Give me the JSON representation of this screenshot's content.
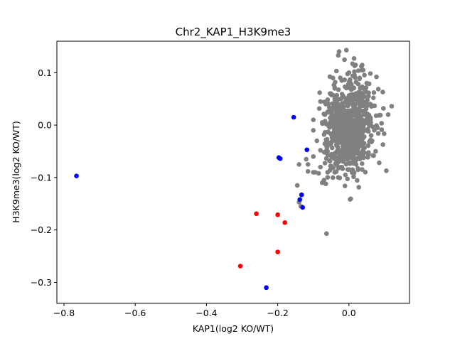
{
  "chart_data": {
    "type": "scatter",
    "title": "Chr2_KAP1_H3K9me3",
    "xlabel": "KAP1(log2 KO/WT)",
    "ylabel": "H3K9me3(log2 KO/WT)",
    "xlim": [
      -0.82,
      0.17
    ],
    "ylim": [
      -0.34,
      0.16
    ],
    "xticks": [
      -0.8,
      -0.6,
      -0.4,
      -0.2,
      0.0
    ],
    "xtick_labels": [
      "−0.8",
      "−0.6",
      "−0.4",
      "−0.2",
      "0.0"
    ],
    "yticks": [
      -0.3,
      -0.2,
      -0.1,
      0.0,
      0.1
    ],
    "ytick_labels": [
      "−0.3",
      "−0.2",
      "−0.1",
      "0.0",
      "0.1"
    ],
    "grid": false,
    "legend": "none",
    "series": [
      {
        "color": "#808080",
        "note_cluster": {
          "center": [
            0.0,
            0.0
          ],
          "spread": [
            0.032,
            0.045
          ],
          "count": 700,
          "seed": 7
        },
        "points": [
          [
            -0.03,
            0.133
          ],
          [
            0.01,
            0.117
          ],
          [
            -0.045,
            0.09
          ],
          [
            0.0,
            0.1
          ],
          [
            0.03,
            0.09
          ],
          [
            -0.05,
            0.06
          ],
          [
            0.055,
            0.055
          ],
          [
            0.07,
            0.062
          ],
          [
            0.095,
            0.063
          ],
          [
            -0.08,
            0.045
          ],
          [
            -0.06,
            0.025
          ],
          [
            0.12,
            0.036
          ],
          [
            -0.1,
            0.01
          ],
          [
            -0.1,
            -0.01
          ],
          [
            0.11,
            0.02
          ],
          [
            -0.075,
            0.005
          ],
          [
            0.08,
            -0.005
          ],
          [
            -0.09,
            -0.03
          ],
          [
            -0.08,
            -0.048
          ],
          [
            0.105,
            -0.087
          ],
          [
            -0.06,
            -0.05
          ],
          [
            0.085,
            -0.072
          ],
          [
            0.065,
            -0.03
          ],
          [
            -0.12,
            -0.065
          ],
          [
            -0.115,
            -0.075
          ],
          [
            -0.1,
            -0.06
          ],
          [
            -0.08,
            -0.08
          ],
          [
            -0.085,
            -0.092
          ],
          [
            -0.095,
            -0.09
          ],
          [
            -0.1,
            -0.09
          ],
          [
            -0.075,
            -0.11
          ],
          [
            -0.07,
            -0.105
          ],
          [
            -0.065,
            -0.112
          ],
          [
            -0.14,
            -0.075
          ],
          [
            -0.05,
            -0.078
          ],
          [
            -0.035,
            -0.07
          ],
          [
            0.02,
            -0.075
          ],
          [
            0.0,
            -0.085
          ],
          [
            0.01,
            -0.085
          ],
          [
            -0.02,
            -0.08
          ],
          [
            -0.145,
            -0.115
          ],
          [
            -0.14,
            -0.147
          ],
          [
            -0.135,
            -0.155
          ],
          [
            -0.063,
            -0.207
          ],
          [
            -0.06,
            -0.09
          ],
          [
            -0.05,
            -0.035
          ],
          [
            0.05,
            0.08
          ],
          [
            0.04,
            0.07
          ],
          [
            -0.04,
            0.07
          ],
          [
            -0.02,
            0.085
          ],
          [
            0.02,
            0.082
          ],
          [
            0.06,
            0.04
          ],
          [
            -0.065,
            0.04
          ],
          [
            0.075,
            -0.05
          ],
          [
            -0.03,
            -0.1
          ],
          [
            -0.04,
            -0.09
          ],
          [
            -0.01,
            -0.095
          ],
          [
            0.03,
            -0.06
          ]
        ]
      },
      {
        "color": "#0000ff",
        "points": [
          [
            -0.765,
            -0.097
          ],
          [
            -0.155,
            0.015
          ],
          [
            -0.197,
            -0.062
          ],
          [
            -0.193,
            -0.064
          ],
          [
            -0.118,
            -0.047
          ],
          [
            -0.133,
            -0.133
          ],
          [
            -0.138,
            -0.142
          ],
          [
            -0.13,
            -0.157
          ],
          [
            -0.232,
            -0.31
          ]
        ]
      },
      {
        "color": "#ff0000",
        "points": [
          [
            -0.26,
            -0.169
          ],
          [
            -0.2,
            -0.171
          ],
          [
            -0.18,
            -0.186
          ],
          [
            -0.2,
            -0.242
          ],
          [
            -0.305,
            -0.269
          ]
        ]
      }
    ]
  }
}
